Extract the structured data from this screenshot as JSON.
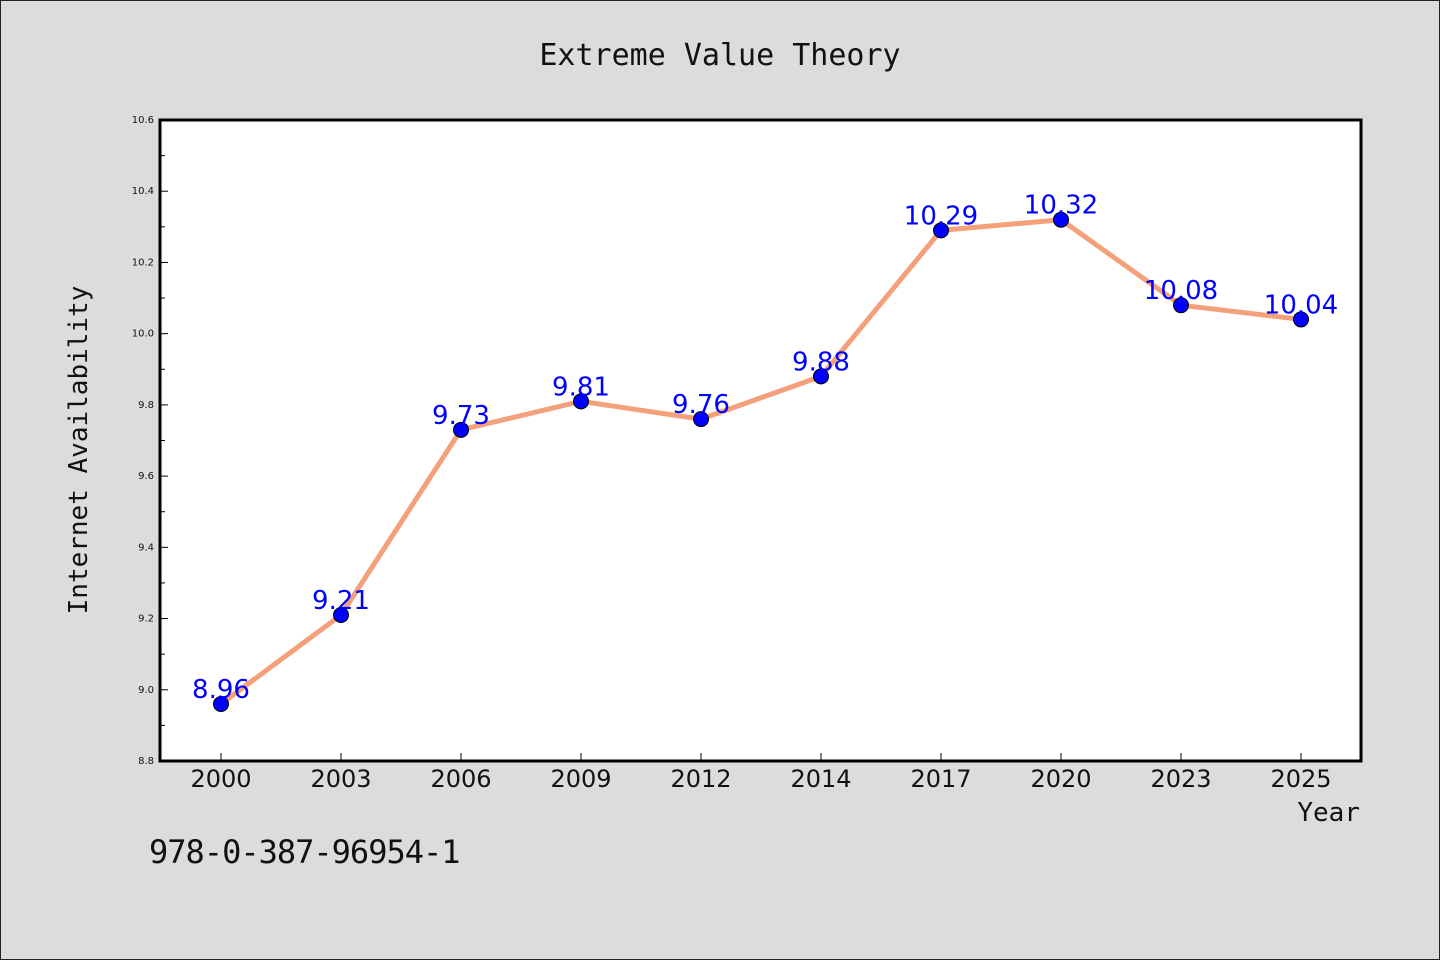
{
  "footer_text": "978-0-387-96954-1",
  "chart_data": {
    "type": "line",
    "title": "Extreme Value Theory",
    "xlabel": "Year",
    "ylabel": "Internet Availability",
    "categories": [
      "2000",
      "2003",
      "2006",
      "2009",
      "2012",
      "2014",
      "2017",
      "2020",
      "2023",
      "2025"
    ],
    "series": [
      {
        "values": [
          8.96,
          9.21,
          9.73,
          9.81,
          9.76,
          9.88,
          10.29,
          10.32,
          10.08,
          10.04
        ],
        "data_labels": [
          "8.96",
          "9.21",
          "9.73",
          "9.81",
          "9.76",
          "9.88",
          "10.29",
          "10.32",
          "10.08",
          "10.04"
        ],
        "line_color": "#f4a07a",
        "marker_color": "#0000ff",
        "label_color": "#0000ff"
      }
    ],
    "ylim": [
      8.8,
      10.6
    ],
    "yticks": [
      "8.8",
      "9.0",
      "9.2",
      "9.4",
      "9.6",
      "9.8",
      "10.0",
      "10.2",
      "10.4",
      "10.6"
    ],
    "grid": false,
    "legend": "none"
  }
}
